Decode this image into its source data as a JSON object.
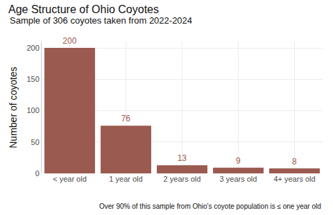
{
  "chart_data": {
    "type": "bar",
    "title": "Age Structure of Ohio Coyotes",
    "subtitle": "Sample of 306 coyotes taken from 2022-2024",
    "y_label": "Number of coyotes",
    "caption": "Over 90% of this sample from Ohio's coyote population is ≤ one year old",
    "categories": [
      "< year old",
      "1 year old",
      "2 years old",
      "3 years old",
      "4+ years old"
    ],
    "values": [
      200,
      76,
      13,
      9,
      8
    ],
    "color": "#9b5a4f",
    "ylim": [
      0,
      210
    ],
    "yticks": [
      0,
      50,
      100,
      150,
      200
    ],
    "grid": true,
    "data_labels": true
  }
}
